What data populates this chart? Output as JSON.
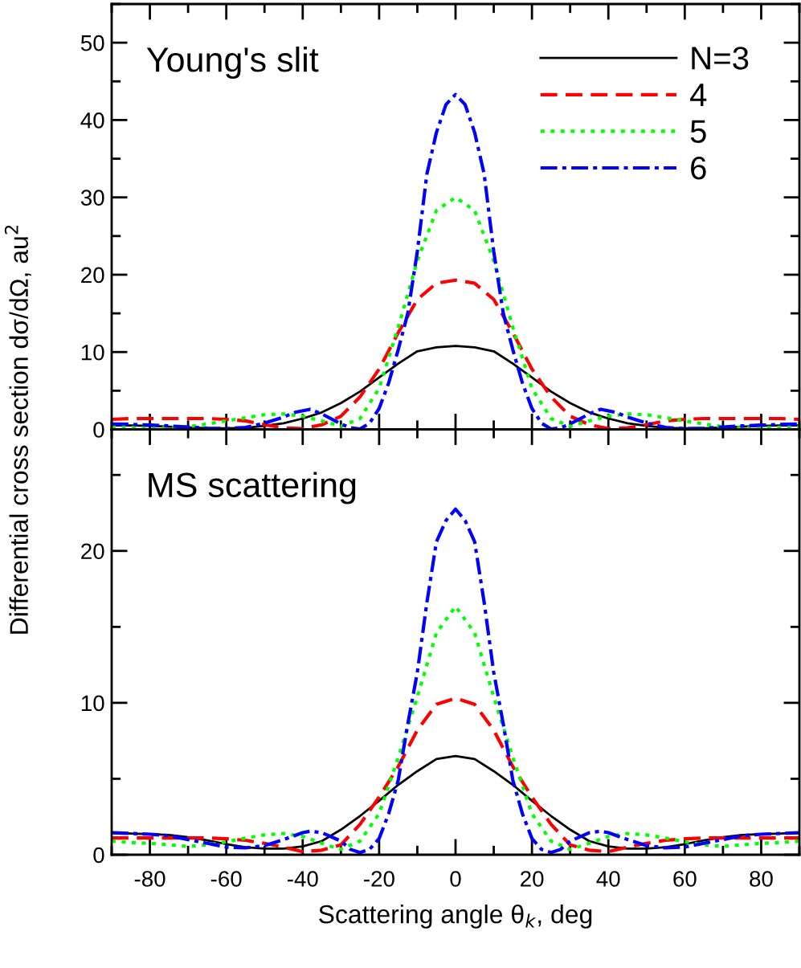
{
  "chart_data": [
    {
      "type": "line",
      "ylabel": "Differential cross section dσ/dΩ, au$^{2}$",
      "annotations": [
        "Young's slit"
      ],
      "xlim": [
        -90,
        90
      ],
      "xticks": [
        -80,
        -60,
        -40,
        -20,
        0,
        20,
        40,
        60,
        80
      ],
      "ylim": [
        0,
        55
      ],
      "yticks": [
        0,
        10,
        20,
        30,
        40,
        50
      ],
      "tick_labels": "y",
      "legend": "top right",
      "grid": false,
      "marker": "none",
      "series": [
        {
          "name": "N=3",
          "color": "#000000",
          "line_style": "solid",
          "x": [
            -90,
            -85,
            -80,
            -75,
            -70,
            -65,
            -60,
            -55,
            -50,
            -45,
            -40,
            -35,
            -30,
            -25,
            -20,
            -15,
            -10,
            -5,
            0,
            5,
            10,
            15,
            20,
            25,
            30,
            35,
            40,
            45,
            50,
            55,
            60,
            65,
            70,
            75,
            80,
            85,
            90
          ],
          "values": [
            0.5,
            0.5,
            0.45,
            0.35,
            0.25,
            0.15,
            0.15,
            0.2,
            0.45,
            0.8,
            1.4,
            2.2,
            3.4,
            4.9,
            6.7,
            8.5,
            10.1,
            10.6,
            10.8,
            10.6,
            10.1,
            8.5,
            6.7,
            4.9,
            3.4,
            2.2,
            1.4,
            0.8,
            0.45,
            0.2,
            0.15,
            0.15,
            0.25,
            0.35,
            0.45,
            0.5,
            0.5
          ]
        },
        {
          "name": "4",
          "color": "#ff0000",
          "line_style": "dashed",
          "x": [
            -90,
            -85,
            -80,
            -75,
            -70,
            -65,
            -60,
            -55,
            -50,
            -45,
            -40,
            -35,
            -30,
            -25,
            -20,
            -15,
            -10,
            -5,
            0,
            5,
            10,
            15,
            20,
            25,
            30,
            35,
            40,
            45,
            50,
            55,
            60,
            65,
            70,
            75,
            80,
            85,
            90
          ],
          "values": [
            1.3,
            1.4,
            1.4,
            1.4,
            1.4,
            1.4,
            1.3,
            1.1,
            0.6,
            0.2,
            0.1,
            0.6,
            1.7,
            4.2,
            7.8,
            12.5,
            16.8,
            18.9,
            19.3,
            18.9,
            16.8,
            12.5,
            7.8,
            4.2,
            1.7,
            0.6,
            0.1,
            0.2,
            0.6,
            1.1,
            1.3,
            1.4,
            1.4,
            1.4,
            1.4,
            1.4,
            1.3
          ]
        },
        {
          "name": "5",
          "color": "#00ff00",
          "line_style": "dotted",
          "x": [
            -90,
            -85,
            -80,
            -75,
            -70,
            -65,
            -60,
            -55,
            -50,
            -45,
            -40,
            -35,
            -30,
            -25,
            -20,
            -15,
            -10,
            -5,
            0,
            5,
            10,
            15,
            20,
            25,
            30,
            35,
            40,
            45,
            50,
            55,
            60,
            65,
            70,
            75,
            80,
            85,
            90
          ],
          "values": [
            0.3,
            0.25,
            0.2,
            0.2,
            0.35,
            0.7,
            1.1,
            1.5,
            1.9,
            2.0,
            1.7,
            1.1,
            0.4,
            1.4,
            5.3,
            13.2,
            21.8,
            28.3,
            30.0,
            28.3,
            21.8,
            13.2,
            5.3,
            1.4,
            0.4,
            1.1,
            1.7,
            2.0,
            1.9,
            1.5,
            1.1,
            0.7,
            0.35,
            0.2,
            0.2,
            0.25,
            0.3
          ]
        },
        {
          "name": "6",
          "color": "#0000ff",
          "line_style": "dashdot",
          "x": [
            -90,
            -85,
            -80,
            -75,
            -70,
            -65,
            -60,
            -55,
            -50,
            -45,
            -42,
            -38,
            -35,
            -30,
            -27.5,
            -25,
            -22.5,
            -20,
            -17.5,
            -15,
            -12.5,
            -10,
            -7.5,
            -5,
            -2.5,
            0,
            2.5,
            5,
            7.5,
            10,
            12.5,
            15,
            17.5,
            20,
            22.5,
            25,
            27.5,
            30,
            35,
            38,
            42,
            45,
            50,
            55,
            60,
            65,
            70,
            75,
            80,
            85,
            90
          ],
          "values": [
            0.7,
            0.65,
            0.55,
            0.45,
            0.3,
            0.15,
            0.1,
            0.25,
            0.8,
            1.6,
            2.2,
            2.6,
            2.0,
            0.7,
            0.2,
            0.05,
            0.8,
            2.7,
            6.0,
            10.3,
            15.0,
            23.0,
            33.0,
            38.4,
            42.0,
            43.3,
            42.0,
            38.4,
            33.0,
            23.0,
            15.0,
            10.3,
            6.0,
            2.7,
            0.8,
            0.05,
            0.2,
            0.7,
            2.0,
            2.6,
            2.2,
            1.6,
            0.8,
            0.25,
            0.1,
            0.15,
            0.3,
            0.45,
            0.55,
            0.65,
            0.7
          ]
        }
      ]
    },
    {
      "type": "line",
      "xlabel": "Scattering angle θ$_{k}$, deg",
      "annotations": [
        "MS scattering"
      ],
      "xlim": [
        -90,
        90
      ],
      "xticks": [
        -80,
        -60,
        -40,
        -20,
        0,
        20,
        40,
        60,
        80
      ],
      "ylim": [
        0,
        28
      ],
      "yticks": [
        0,
        10,
        20
      ],
      "grid": false,
      "marker": "none",
      "series": [
        {
          "color": "#000000",
          "line_style": "solid",
          "x": [
            -90,
            -85,
            -80,
            -75,
            -70,
            -65,
            -60,
            -55,
            -50,
            -45,
            -40,
            -35,
            -30,
            -25,
            -20,
            -15,
            -10,
            -5,
            0,
            5,
            10,
            15,
            20,
            25,
            30,
            35,
            40,
            45,
            50,
            55,
            60,
            65,
            70,
            75,
            80,
            85,
            90
          ],
          "values": [
            1.45,
            1.4,
            1.35,
            1.3,
            1.15,
            0.95,
            0.7,
            0.5,
            0.4,
            0.4,
            0.55,
            0.9,
            1.65,
            2.55,
            3.55,
            4.6,
            5.5,
            6.3,
            6.5,
            6.3,
            5.5,
            4.6,
            3.55,
            2.55,
            1.65,
            0.9,
            0.55,
            0.4,
            0.4,
            0.5,
            0.7,
            0.95,
            1.15,
            1.3,
            1.35,
            1.4,
            1.45
          ]
        },
        {
          "color": "#ff0000",
          "line_style": "dashed",
          "x": [
            -90,
            -85,
            -80,
            -75,
            -70,
            -65,
            -60,
            -55,
            -50,
            -45,
            -40,
            -35,
            -30,
            -25,
            -20,
            -15,
            -10,
            -5,
            0,
            5,
            10,
            15,
            20,
            25,
            30,
            35,
            40,
            45,
            50,
            55,
            60,
            65,
            70,
            75,
            80,
            85,
            90
          ],
          "values": [
            1.1,
            1.1,
            1.1,
            1.1,
            1.1,
            1.1,
            1.05,
            0.95,
            0.75,
            0.5,
            0.2,
            0.3,
            0.65,
            2.0,
            3.8,
            5.8,
            8.2,
            9.9,
            10.3,
            9.9,
            8.2,
            5.8,
            3.8,
            2.0,
            0.65,
            0.3,
            0.2,
            0.5,
            0.75,
            0.95,
            1.05,
            1.1,
            1.1,
            1.1,
            1.1,
            1.1,
            1.1
          ]
        },
        {
          "color": "#00ff00",
          "line_style": "dotted",
          "x": [
            -90,
            -85,
            -80,
            -75,
            -70,
            -65,
            -60,
            -55,
            -50,
            -45,
            -40,
            -35,
            -30,
            -25,
            -20,
            -15,
            -10,
            -5,
            0,
            5,
            10,
            15,
            20,
            25,
            30,
            35,
            40,
            45,
            50,
            55,
            60,
            65,
            70,
            75,
            80,
            85,
            90
          ],
          "values": [
            0.9,
            0.8,
            0.75,
            0.65,
            0.55,
            0.65,
            0.85,
            1.1,
            1.3,
            1.4,
            1.2,
            0.75,
            0.35,
            0.9,
            2.7,
            6.4,
            10.4,
            14.6,
            16.35,
            14.6,
            10.4,
            6.4,
            2.7,
            0.9,
            0.35,
            0.75,
            1.2,
            1.4,
            1.3,
            1.1,
            0.85,
            0.65,
            0.55,
            0.65,
            0.75,
            0.8,
            0.9
          ]
        },
        {
          "color": "#0000ff",
          "line_style": "dashdot",
          "x": [
            -90,
            -85,
            -80,
            -75,
            -70,
            -65,
            -60,
            -55,
            -50,
            -45,
            -40,
            -38,
            -35,
            -30,
            -27.5,
            -25,
            -22.5,
            -20,
            -17.5,
            -15,
            -12.5,
            -10,
            -7.5,
            -5,
            -2.5,
            0,
            2.5,
            5,
            7.5,
            10,
            12.5,
            15,
            17.5,
            20,
            22.5,
            25,
            27.5,
            30,
            35,
            38,
            40,
            45,
            50,
            55,
            60,
            65,
            70,
            75,
            80,
            85,
            90
          ],
          "values": [
            1.45,
            1.4,
            1.35,
            1.25,
            1.0,
            0.75,
            0.5,
            0.45,
            0.6,
            1.0,
            1.45,
            1.55,
            1.45,
            0.9,
            0.35,
            0.15,
            0.35,
            1.07,
            2.7,
            4.9,
            8.6,
            12.0,
            16.6,
            20.6,
            22.0,
            22.75,
            22.0,
            20.6,
            16.6,
            12.0,
            8.6,
            4.9,
            2.7,
            1.07,
            0.35,
            0.15,
            0.35,
            0.9,
            1.45,
            1.55,
            1.45,
            1.0,
            0.6,
            0.45,
            0.5,
            0.75,
            1.0,
            1.25,
            1.35,
            1.4,
            1.45
          ]
        }
      ]
    }
  ]
}
